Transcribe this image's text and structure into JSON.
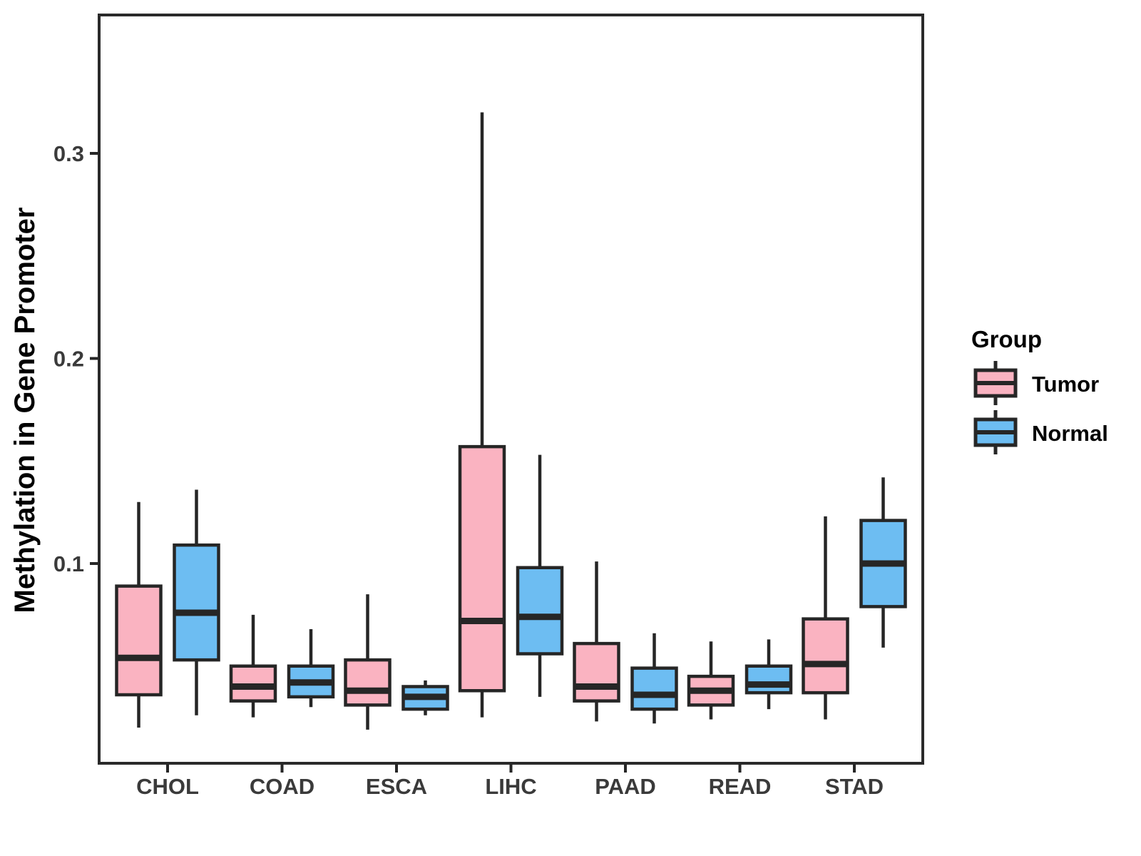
{
  "chart_data": {
    "type": "boxplot",
    "title": "",
    "xlabel": "",
    "ylabel": "Methylation in Gene Promoter",
    "categories": [
      "CHOL",
      "COAD",
      "ESCA",
      "LIHC",
      "PAAD",
      "READ",
      "STAD"
    ],
    "yticks": [
      {
        "label": "0.1",
        "value": 0.1
      },
      {
        "label": "0.2",
        "value": 0.2
      },
      {
        "label": "0.3",
        "value": 0.3
      }
    ],
    "ylim": [
      0.003,
      0.37
    ],
    "grid": "off",
    "legend": {
      "title": "Group",
      "position": "right",
      "entries": [
        {
          "label": "Tumor",
          "color": "#FAB3C1"
        },
        {
          "label": "Normal",
          "color": "#6DBDF2"
        }
      ]
    },
    "colors": {
      "tumor_fill": "#FAB3C1",
      "normal_fill": "#6DBDF2",
      "line": "#262626",
      "panel_border": "#2a2a2a",
      "background": "#ffffff"
    },
    "series": [
      {
        "name": "Tumor",
        "color": "#FAB3C1",
        "boxes": [
          {
            "category": "CHOL",
            "low": 0.02,
            "q1": 0.036,
            "median": 0.054,
            "q3": 0.089,
            "high": 0.13
          },
          {
            "category": "COAD",
            "low": 0.025,
            "q1": 0.033,
            "median": 0.04,
            "q3": 0.05,
            "high": 0.075
          },
          {
            "category": "ESCA",
            "low": 0.019,
            "q1": 0.031,
            "median": 0.038,
            "q3": 0.053,
            "high": 0.085
          },
          {
            "category": "LIHC",
            "low": 0.025,
            "q1": 0.038,
            "median": 0.072,
            "q3": 0.157,
            "high": 0.32
          },
          {
            "category": "PAAD",
            "low": 0.023,
            "q1": 0.033,
            "median": 0.04,
            "q3": 0.061,
            "high": 0.101
          },
          {
            "category": "READ",
            "low": 0.024,
            "q1": 0.031,
            "median": 0.038,
            "q3": 0.045,
            "high": 0.062
          },
          {
            "category": "STAD",
            "low": 0.024,
            "q1": 0.037,
            "median": 0.051,
            "q3": 0.073,
            "high": 0.123
          }
        ]
      },
      {
        "name": "Normal",
        "color": "#6DBDF2",
        "boxes": [
          {
            "category": "CHOL",
            "low": 0.026,
            "q1": 0.053,
            "median": 0.076,
            "q3": 0.109,
            "high": 0.136
          },
          {
            "category": "COAD",
            "low": 0.03,
            "q1": 0.035,
            "median": 0.042,
            "q3": 0.05,
            "high": 0.068
          },
          {
            "category": "ESCA",
            "low": 0.026,
            "q1": 0.029,
            "median": 0.035,
            "q3": 0.04,
            "high": 0.043
          },
          {
            "category": "LIHC",
            "low": 0.035,
            "q1": 0.056,
            "median": 0.074,
            "q3": 0.098,
            "high": 0.153
          },
          {
            "category": "PAAD",
            "low": 0.022,
            "q1": 0.029,
            "median": 0.036,
            "q3": 0.049,
            "high": 0.066
          },
          {
            "category": "READ",
            "low": 0.029,
            "q1": 0.037,
            "median": 0.041,
            "q3": 0.05,
            "high": 0.063
          },
          {
            "category": "STAD",
            "low": 0.059,
            "q1": 0.079,
            "median": 0.1,
            "q3": 0.121,
            "high": 0.142
          }
        ]
      }
    ]
  }
}
